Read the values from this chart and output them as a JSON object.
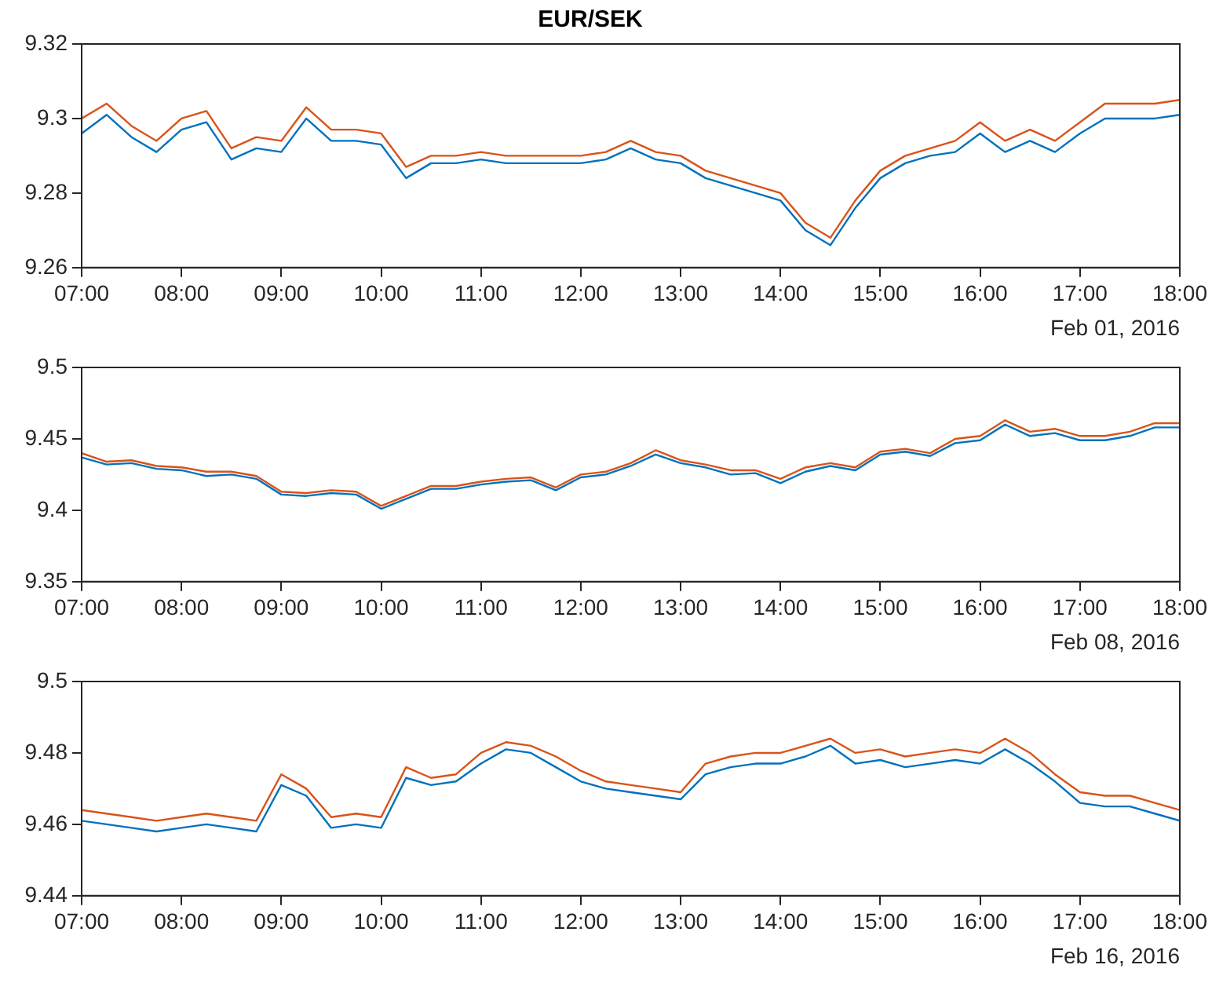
{
  "chart_data": [
    {
      "type": "line",
      "title": "EUR/SEK",
      "xlabel": "Feb 01, 2016",
      "grid": false,
      "legend": false,
      "xlim": [
        7,
        18
      ],
      "xticks": [
        {
          "value": 7,
          "label": "07:00"
        },
        {
          "value": 8,
          "label": "08:00"
        },
        {
          "value": 9,
          "label": "09:00"
        },
        {
          "value": 10,
          "label": "10:00"
        },
        {
          "value": 11,
          "label": "11:00"
        },
        {
          "value": 12,
          "label": "12:00"
        },
        {
          "value": 13,
          "label": "13:00"
        },
        {
          "value": 14,
          "label": "14:00"
        },
        {
          "value": 15,
          "label": "15:00"
        },
        {
          "value": 16,
          "label": "16:00"
        },
        {
          "value": 17,
          "label": "17:00"
        },
        {
          "value": 18,
          "label": "18:00"
        }
      ],
      "ylim": [
        9.26,
        9.32
      ],
      "yticks": [
        9.26,
        9.28,
        9.3,
        9.32
      ],
      "x": [
        7,
        7.25,
        7.5,
        7.75,
        8,
        8.25,
        8.5,
        8.75,
        9,
        9.25,
        9.5,
        9.75,
        10,
        10.25,
        10.5,
        10.75,
        11,
        11.25,
        11.5,
        11.75,
        12,
        12.25,
        12.5,
        12.75,
        13,
        13.25,
        13.5,
        13.75,
        14,
        14.25,
        14.5,
        14.75,
        15,
        15.25,
        15.5,
        15.75,
        16,
        16.25,
        16.5,
        16.75,
        17,
        17.25,
        17.5,
        17.75,
        18
      ],
      "series": [
        {
          "color": "#0072bd",
          "values": [
            9.296,
            9.301,
            9.295,
            9.291,
            9.297,
            9.299,
            9.289,
            9.292,
            9.291,
            9.3,
            9.294,
            9.294,
            9.293,
            9.284,
            9.288,
            9.288,
            9.289,
            9.288,
            9.288,
            9.288,
            9.288,
            9.289,
            9.292,
            9.289,
            9.288,
            9.284,
            9.282,
            9.28,
            9.278,
            9.27,
            9.266,
            9.276,
            9.284,
            9.288,
            9.29,
            9.291,
            9.296,
            9.291,
            9.294,
            9.291,
            9.296,
            9.3,
            9.3,
            9.3,
            9.301
          ]
        },
        {
          "color": "#d95319",
          "values": [
            9.3,
            9.304,
            9.298,
            9.294,
            9.3,
            9.302,
            9.292,
            9.295,
            9.294,
            9.303,
            9.297,
            9.297,
            9.296,
            9.287,
            9.29,
            9.29,
            9.291,
            9.29,
            9.29,
            9.29,
            9.29,
            9.291,
            9.294,
            9.291,
            9.29,
            9.286,
            9.284,
            9.282,
            9.28,
            9.272,
            9.268,
            9.278,
            9.286,
            9.29,
            9.292,
            9.294,
            9.299,
            9.294,
            9.297,
            9.294,
            9.299,
            9.304,
            9.304,
            9.304,
            9.305
          ]
        }
      ]
    },
    {
      "type": "line",
      "xlabel": "Feb 08, 2016",
      "grid": false,
      "legend": false,
      "xlim": [
        7,
        18
      ],
      "xticks": [
        {
          "value": 7,
          "label": "07:00"
        },
        {
          "value": 8,
          "label": "08:00"
        },
        {
          "value": 9,
          "label": "09:00"
        },
        {
          "value": 10,
          "label": "10:00"
        },
        {
          "value": 11,
          "label": "11:00"
        },
        {
          "value": 12,
          "label": "12:00"
        },
        {
          "value": 13,
          "label": "13:00"
        },
        {
          "value": 14,
          "label": "14:00"
        },
        {
          "value": 15,
          "label": "15:00"
        },
        {
          "value": 16,
          "label": "16:00"
        },
        {
          "value": 17,
          "label": "17:00"
        },
        {
          "value": 18,
          "label": "18:00"
        }
      ],
      "ylim": [
        9.35,
        9.5
      ],
      "yticks": [
        9.35,
        9.4,
        9.45,
        9.5
      ],
      "x": [
        7,
        7.25,
        7.5,
        7.75,
        8,
        8.25,
        8.5,
        8.75,
        9,
        9.25,
        9.5,
        9.75,
        10,
        10.25,
        10.5,
        10.75,
        11,
        11.25,
        11.5,
        11.75,
        12,
        12.25,
        12.5,
        12.75,
        13,
        13.25,
        13.5,
        13.75,
        14,
        14.25,
        14.5,
        14.75,
        15,
        15.25,
        15.5,
        15.75,
        16,
        16.25,
        16.5,
        16.75,
        17,
        17.25,
        17.5,
        17.75,
        18
      ],
      "series": [
        {
          "color": "#0072bd",
          "values": [
            9.437,
            9.432,
            9.433,
            9.429,
            9.428,
            9.424,
            9.425,
            9.422,
            9.411,
            9.41,
            9.412,
            9.411,
            9.401,
            9.408,
            9.415,
            9.415,
            9.418,
            9.42,
            9.421,
            9.414,
            9.423,
            9.425,
            9.431,
            9.439,
            9.433,
            9.43,
            9.425,
            9.426,
            9.419,
            9.427,
            9.431,
            9.428,
            9.439,
            9.441,
            9.438,
            9.447,
            9.449,
            9.46,
            9.452,
            9.454,
            9.449,
            9.449,
            9.452,
            9.458,
            9.458
          ]
        },
        {
          "color": "#d95319",
          "values": [
            9.44,
            9.434,
            9.435,
            9.431,
            9.43,
            9.427,
            9.427,
            9.424,
            9.413,
            9.412,
            9.414,
            9.413,
            9.403,
            9.41,
            9.417,
            9.417,
            9.42,
            9.422,
            9.423,
            9.416,
            9.425,
            9.427,
            9.433,
            9.442,
            9.435,
            9.432,
            9.428,
            9.428,
            9.422,
            9.43,
            9.433,
            9.43,
            9.441,
            9.443,
            9.44,
            9.45,
            9.452,
            9.463,
            9.455,
            9.457,
            9.452,
            9.452,
            9.455,
            9.461,
            9.461
          ]
        }
      ]
    },
    {
      "type": "line",
      "xlabel": "Feb 16, 2016",
      "grid": false,
      "legend": false,
      "xlim": [
        7,
        18
      ],
      "xticks": [
        {
          "value": 7,
          "label": "07:00"
        },
        {
          "value": 8,
          "label": "08:00"
        },
        {
          "value": 9,
          "label": "09:00"
        },
        {
          "value": 10,
          "label": "10:00"
        },
        {
          "value": 11,
          "label": "11:00"
        },
        {
          "value": 12,
          "label": "12:00"
        },
        {
          "value": 13,
          "label": "13:00"
        },
        {
          "value": 14,
          "label": "14:00"
        },
        {
          "value": 15,
          "label": "15:00"
        },
        {
          "value": 16,
          "label": "16:00"
        },
        {
          "value": 17,
          "label": "17:00"
        },
        {
          "value": 18,
          "label": "18:00"
        }
      ],
      "ylim": [
        9.44,
        9.5
      ],
      "yticks": [
        9.44,
        9.46,
        9.48,
        9.5
      ],
      "x": [
        7,
        7.25,
        7.5,
        7.75,
        8,
        8.25,
        8.5,
        8.75,
        9,
        9.25,
        9.5,
        9.75,
        10,
        10.25,
        10.5,
        10.75,
        11,
        11.25,
        11.5,
        11.75,
        12,
        12.25,
        12.5,
        12.75,
        13,
        13.25,
        13.5,
        13.75,
        14,
        14.25,
        14.5,
        14.75,
        15,
        15.25,
        15.5,
        15.75,
        16,
        16.25,
        16.5,
        16.75,
        17,
        17.25,
        17.5,
        17.75,
        18
      ],
      "series": [
        {
          "color": "#0072bd",
          "values": [
            9.461,
            9.46,
            9.459,
            9.458,
            9.459,
            9.46,
            9.459,
            9.458,
            9.471,
            9.468,
            9.459,
            9.46,
            9.459,
            9.473,
            9.471,
            9.472,
            9.477,
            9.481,
            9.48,
            9.476,
            9.472,
            9.47,
            9.469,
            9.468,
            9.467,
            9.474,
            9.476,
            9.477,
            9.477,
            9.479,
            9.482,
            9.477,
            9.478,
            9.476,
            9.477,
            9.478,
            9.477,
            9.481,
            9.477,
            9.472,
            9.466,
            9.465,
            9.465,
            9.463,
            9.461
          ]
        },
        {
          "color": "#d95319",
          "values": [
            9.464,
            9.463,
            9.462,
            9.461,
            9.462,
            9.463,
            9.462,
            9.461,
            9.474,
            9.47,
            9.462,
            9.463,
            9.462,
            9.476,
            9.473,
            9.474,
            9.48,
            9.483,
            9.482,
            9.479,
            9.475,
            9.472,
            9.471,
            9.47,
            9.469,
            9.477,
            9.479,
            9.48,
            9.48,
            9.482,
            9.484,
            9.48,
            9.481,
            9.479,
            9.48,
            9.481,
            9.48,
            9.484,
            9.48,
            9.474,
            9.469,
            9.468,
            9.468,
            9.466,
            9.464
          ]
        }
      ]
    }
  ]
}
